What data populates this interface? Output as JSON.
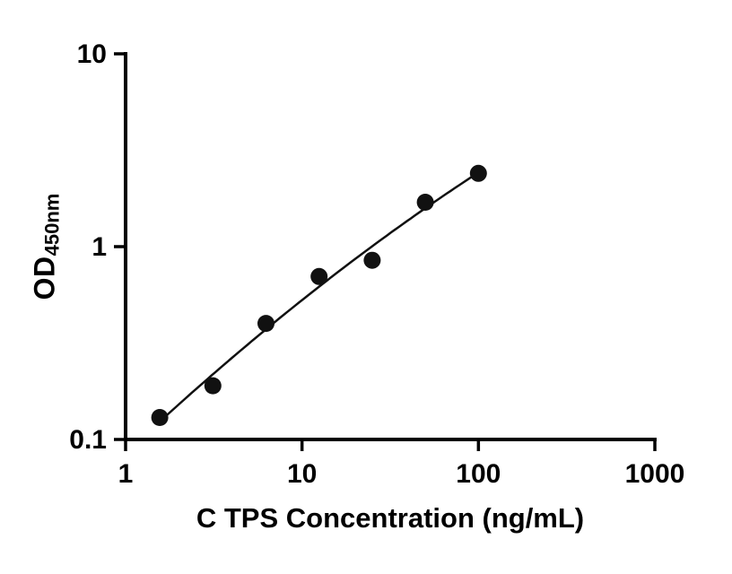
{
  "chart_data": {
    "type": "scatter",
    "title": "",
    "xlabel": "C TPS Concentration (ng/mL)",
    "ylabel": "OD",
    "ylabel_sub": "450nm",
    "x": [
      1.5625,
      3.125,
      6.25,
      12.5,
      25,
      50,
      100
    ],
    "y": [
      0.13,
      0.19,
      0.4,
      0.7,
      0.85,
      1.7,
      2.4
    ],
    "fit": "smooth log-log curve through standards",
    "xscale": "log",
    "yscale": "log",
    "xlim": [
      1,
      1000
    ],
    "ylim": [
      0.1,
      10
    ],
    "xticks": [
      1,
      10,
      100,
      1000
    ],
    "xtick_labels": [
      "1",
      "10",
      "100",
      "1000"
    ],
    "yticks": [
      0.1,
      1,
      10
    ],
    "ytick_labels": [
      "0.1",
      "1",
      "10"
    ],
    "grid": false,
    "legend": false,
    "axis_color": "#000000",
    "marker_color": "#111111",
    "line_color": "#111111"
  }
}
